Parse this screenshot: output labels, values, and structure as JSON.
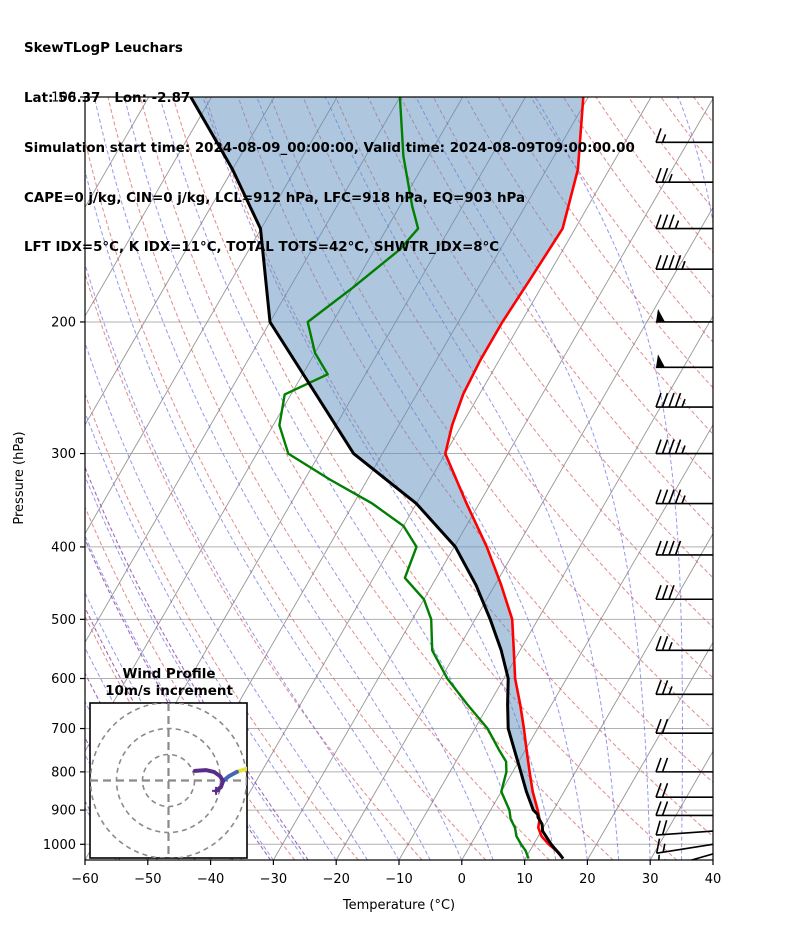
{
  "header": {
    "line1": "SkewTLogP Leuchars",
    "line2": "Lat: 56.37   Lon: -2.87",
    "line3": "Simulation start time: 2024-08-09_00:00:00, Valid time: 2024-08-09T09:00:00.00",
    "line4": "CAPE=0 j/kg, CIN=0 j/kg, LCL=912 hPa, LFC=918 hPa, EQ=903 hPa",
    "line5": "LFT IDX=5°C, K IDX=11°C, TOTAL TOTS=42°C, SHWTR_IDX=8°C"
  },
  "chart_data": {
    "type": "skewt-logp",
    "station": "Leuchars",
    "lat": 56.37,
    "lon": -2.87,
    "simulation_start_time": "2024-08-09_00:00:00",
    "valid_time": "2024-08-09T09:00:00.00",
    "indices": {
      "CAPE_j_kg": 0,
      "CIN_j_kg": 0,
      "LCL_hPa": 912,
      "LFC_hPa": 918,
      "EQ_hPa": 903,
      "LFT_IDX_C": 5,
      "K_IDX_C": 11,
      "TOTAL_TOTS_C": 42,
      "SHWTR_IDX_C": 8
    },
    "x_axis": {
      "label": "Temperature (°C)",
      "min": -60,
      "max": 40,
      "ticks": [
        -60,
        -50,
        -40,
        -30,
        -20,
        -10,
        0,
        10,
        20,
        30,
        40
      ],
      "unit": "°C"
    },
    "y_axis": {
      "label": "Pressure (hPa)",
      "scale": "log",
      "range_hPa": [
        100,
        1050
      ],
      "ticks": [
        100,
        200,
        300,
        400,
        500,
        600,
        700,
        800,
        900,
        1000
      ],
      "unit": "hPa"
    },
    "skew_rotation_deg": 30,
    "temperature_profile_C": [
      [
        1045,
        16.0
      ],
      [
        1020,
        14.2
      ],
      [
        1000,
        12.4
      ],
      [
        975,
        10.5
      ],
      [
        950,
        9.2
      ],
      [
        925,
        8.6
      ],
      [
        900,
        7.5
      ],
      [
        850,
        5.0
      ],
      [
        800,
        2.7
      ],
      [
        750,
        0.3
      ],
      [
        700,
        -2.2
      ],
      [
        650,
        -5.0
      ],
      [
        600,
        -8.2
      ],
      [
        550,
        -11.0
      ],
      [
        500,
        -14.1
      ],
      [
        450,
        -19.0
      ],
      [
        400,
        -24.8
      ],
      [
        350,
        -32.0
      ],
      [
        300,
        -40.0
      ],
      [
        275,
        -41.5
      ],
      [
        250,
        -42.6
      ],
      [
        225,
        -43.0
      ],
      [
        200,
        -43.0
      ],
      [
        175,
        -42.5
      ],
      [
        150,
        -42.0
      ],
      [
        125,
        -45.0
      ],
      [
        100,
        -50.8
      ]
    ],
    "dewpoint_profile_C": [
      [
        1045,
        10.5
      ],
      [
        1020,
        9.3
      ],
      [
        1000,
        8.0
      ],
      [
        975,
        6.5
      ],
      [
        950,
        5.5
      ],
      [
        925,
        4.0
      ],
      [
        900,
        3.0
      ],
      [
        850,
        0.0
      ],
      [
        800,
        -1.0
      ],
      [
        775,
        -2.0
      ],
      [
        750,
        -4.0
      ],
      [
        700,
        -8.0
      ],
      [
        650,
        -13.4
      ],
      [
        600,
        -19.0
      ],
      [
        550,
        -24.0
      ],
      [
        500,
        -27.0
      ],
      [
        470,
        -30.0
      ],
      [
        440,
        -35.0
      ],
      [
        420,
        -35.5
      ],
      [
        400,
        -36.0
      ],
      [
        375,
        -40.0
      ],
      [
        350,
        -47.0
      ],
      [
        325,
        -56.0
      ],
      [
        300,
        -65.0
      ],
      [
        275,
        -69.0
      ],
      [
        250,
        -71.0
      ],
      [
        235,
        -66.0
      ],
      [
        220,
        -70.0
      ],
      [
        200,
        -74.0
      ],
      [
        180,
        -70.0
      ],
      [
        160,
        -66.0
      ],
      [
        150,
        -65.0
      ],
      [
        140,
        -68.0
      ],
      [
        120,
        -74.0
      ],
      [
        100,
        -80.0
      ]
    ],
    "parcel_profile_C": [
      [
        1045,
        16.0
      ],
      [
        1030,
        15.0
      ],
      [
        1010,
        13.5
      ],
      [
        1000,
        12.8
      ],
      [
        980,
        11.5
      ],
      [
        960,
        10.2
      ],
      [
        940,
        9.5
      ],
      [
        920,
        8.2
      ],
      [
        912,
        7.9
      ],
      [
        900,
        6.8
      ],
      [
        850,
        4.0
      ],
      [
        800,
        1.3
      ],
      [
        750,
        -1.6
      ],
      [
        700,
        -4.7
      ],
      [
        650,
        -7.0
      ],
      [
        600,
        -9.3
      ],
      [
        550,
        -13.0
      ],
      [
        500,
        -17.6
      ],
      [
        450,
        -23.0
      ],
      [
        400,
        -29.8
      ],
      [
        350,
        -40.0
      ],
      [
        300,
        -54.6
      ],
      [
        250,
        -66.0
      ],
      [
        200,
        -80.0
      ],
      [
        150,
        -90.1
      ],
      [
        125,
        -100.0
      ],
      [
        100,
        -113.3
      ]
    ],
    "shading": {
      "meaning": "area between parcel profile and temperature profile",
      "max_pressure_hPa": 925
    },
    "wind_barb_units": "m/s style: half=5, full=10, pennant=50",
    "wind_barbs": [
      {
        "pressure_hPa": 115,
        "speed": 15,
        "rotation_deg": 0
      },
      {
        "pressure_hPa": 130,
        "speed": 25,
        "rotation_deg": 0
      },
      {
        "pressure_hPa": 150,
        "speed": 35,
        "rotation_deg": 0
      },
      {
        "pressure_hPa": 170,
        "speed": 45,
        "rotation_deg": 0
      },
      {
        "pressure_hPa": 200,
        "speed": 50,
        "rotation_deg": 0
      },
      {
        "pressure_hPa": 230,
        "speed": 50,
        "rotation_deg": 0
      },
      {
        "pressure_hPa": 260,
        "speed": 45,
        "rotation_deg": 0
      },
      {
        "pressure_hPa": 300,
        "speed": 45,
        "rotation_deg": 0
      },
      {
        "pressure_hPa": 350,
        "speed": 45,
        "rotation_deg": 0
      },
      {
        "pressure_hPa": 410,
        "speed": 40,
        "rotation_deg": 0
      },
      {
        "pressure_hPa": 470,
        "speed": 30,
        "rotation_deg": 0
      },
      {
        "pressure_hPa": 550,
        "speed": 25,
        "rotation_deg": 0
      },
      {
        "pressure_hPa": 630,
        "speed": 25,
        "rotation_deg": 0
      },
      {
        "pressure_hPa": 710,
        "speed": 20,
        "rotation_deg": 0
      },
      {
        "pressure_hPa": 800,
        "speed": 20,
        "rotation_deg": 0
      },
      {
        "pressure_hPa": 865,
        "speed": 20,
        "rotation_deg": 0
      },
      {
        "pressure_hPa": 915,
        "speed": 20,
        "rotation_deg": 0
      },
      {
        "pressure_hPa": 960,
        "speed": 20,
        "rotation_deg": -4
      },
      {
        "pressure_hPa": 1000,
        "speed": 15,
        "rotation_deg": -9
      },
      {
        "pressure_hPa": 1030,
        "speed": 15,
        "rotation_deg": -16
      }
    ],
    "background_lines": {
      "isotherms_C": {
        "min": -150,
        "max": 40,
        "step": 10
      },
      "dry_adiabats_theta_C": {
        "min": -40,
        "max": 200,
        "step": 10
      },
      "moist_adiabats_start_C": {
        "min": -55,
        "max": 40,
        "step": 5
      },
      "purple_adiabats_start_C": {
        "min": -85,
        "max": -25,
        "step": 6
      }
    },
    "hodograph": {
      "title_line1": "Wind Profile",
      "title_line2": "10m/s increment",
      "ring_interval_ms": 10,
      "rings_ms": [
        10,
        20,
        30
      ],
      "trace_ms": {
        "yellow": [
          [
            31.0,
            4.8
          ],
          [
            26.3,
            3.3
          ]
        ],
        "blue": [
          [
            26.3,
            3.3
          ],
          [
            23.3,
            1.7
          ],
          [
            21.0,
            -0.2
          ]
        ],
        "purple": [
          [
            10.2,
            3.7
          ],
          [
            14.4,
            4.0
          ],
          [
            17.5,
            3.3
          ],
          [
            19.8,
            1.7
          ],
          [
            21.0,
            -0.2
          ],
          [
            20.2,
            -2.5
          ],
          [
            18.3,
            -4.0
          ]
        ]
      }
    },
    "colors": {
      "temperature_line": "#ff0000",
      "dewpoint_line": "#007f00",
      "parcel_line": "#000000",
      "shading_fill": "rgba(93,143,191,0.50)",
      "isotherms": "#969696",
      "grid": "#b0b0b0",
      "dry_adiabats": "rgba(214,88,88,0.70)",
      "moist_adiabats": "rgba(92,98,221,0.65)",
      "purple_lines": "rgba(148,78,170,0.85)",
      "barbs": "#000000",
      "hodo_yellow": "#e8e337",
      "hodo_blue": "#4565b5",
      "hodo_purple": "#582d8a"
    }
  }
}
